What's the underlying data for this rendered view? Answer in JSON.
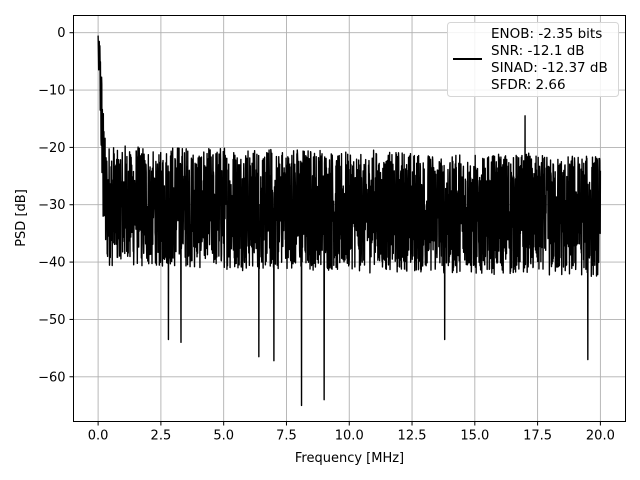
{
  "chart_data": {
    "type": "line",
    "xlabel": "Frequency [MHz]",
    "ylabel": "PSD [dB]",
    "xlim": [
      -0.98,
      21.0
    ],
    "ylim": [
      -67.8,
      3.0
    ],
    "xticks": [
      0.0,
      2.5,
      5.0,
      7.5,
      10.0,
      12.5,
      15.0,
      17.5,
      20.0
    ],
    "xtick_labels": [
      "0.0",
      "2.5",
      "5.0",
      "7.5",
      "10.0",
      "12.5",
      "15.0",
      "17.5",
      "20.0"
    ],
    "yticks": [
      0,
      -10,
      -20,
      -30,
      -40,
      -50,
      -60
    ],
    "ytick_labels": [
      "0",
      "−10",
      "−20",
      "−30",
      "−40",
      "−50",
      "−60"
    ],
    "grid": true,
    "legend_position": "top-right",
    "line_color": "#000000",
    "series": [
      {
        "name": "",
        "x_range": [
          0.0,
          20.0
        ],
        "noise_floor_db": -30,
        "peak_db": -0.5,
        "notable_points": [
          {
            "x": 0.0,
            "y": -0.5
          },
          {
            "x": 0.05,
            "y": -3.0
          },
          {
            "x": 0.1,
            "y": -12.0
          },
          {
            "x": 0.2,
            "y": -32.0
          },
          {
            "x": 2.8,
            "y": -53.5
          },
          {
            "x": 3.3,
            "y": -54.0
          },
          {
            "x": 6.4,
            "y": -56.5
          },
          {
            "x": 7.0,
            "y": -57.2
          },
          {
            "x": 8.1,
            "y": -65.0
          },
          {
            "x": 9.0,
            "y": -64.0
          },
          {
            "x": 13.8,
            "y": -53.5
          },
          {
            "x": 17.0,
            "y": -14.5
          },
          {
            "x": 19.5,
            "y": -57.0
          }
        ]
      }
    ],
    "legend_entries": [
      "ENOB: -2.35 bits",
      "SNR: -12.1 dB",
      "SINAD: -12.37 dB",
      "SFDR: 2.66"
    ]
  }
}
